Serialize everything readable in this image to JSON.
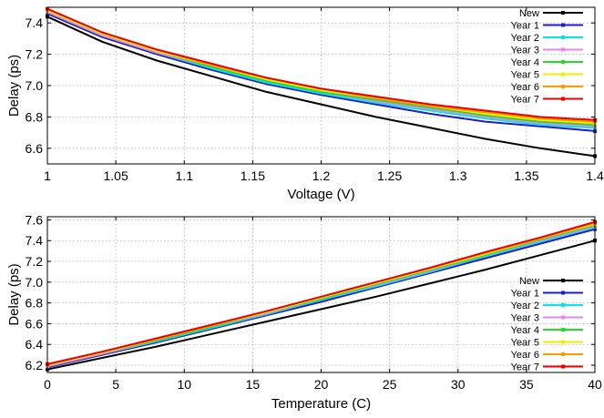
{
  "chart_data": [
    {
      "type": "line",
      "xlabel": "Voltage (V)",
      "ylabel": "Delay (ps)",
      "xlim": [
        1,
        1.4
      ],
      "ylim": [
        6.5,
        7.5
      ],
      "xticks": [
        1,
        1.05,
        1.1,
        1.15,
        1.2,
        1.25,
        1.3,
        1.35,
        1.4
      ],
      "xtick_labels": [
        "1",
        "1.05",
        "1.1",
        "1.15",
        "1.2",
        "1.25",
        "1.3",
        "1.35",
        "1.4"
      ],
      "yticks": [
        6.6,
        6.8,
        7.0,
        7.2,
        7.4
      ],
      "ytick_labels": [
        "6.6",
        "6.8",
        "7.0",
        "7.2",
        "7.4"
      ],
      "grid": true,
      "legend_position": "top-right",
      "x": [
        1,
        1.04,
        1.08,
        1.12,
        1.16,
        1.2,
        1.24,
        1.28,
        1.32,
        1.36,
        1.4
      ],
      "series": [
        {
          "name": "New",
          "color": "#000000",
          "values": [
            7.44,
            7.28,
            7.16,
            7.06,
            6.96,
            6.88,
            6.8,
            6.73,
            6.66,
            6.6,
            6.55
          ]
        },
        {
          "name": "Year 1",
          "color": "#1c1cc8",
          "values": [
            7.46,
            7.31,
            7.2,
            7.1,
            7.01,
            6.94,
            6.88,
            6.82,
            6.77,
            6.74,
            6.71
          ]
        },
        {
          "name": "Year 2",
          "color": "#00e5ee",
          "values": [
            7.47,
            7.32,
            7.21,
            7.11,
            7.02,
            6.95,
            6.89,
            6.84,
            6.79,
            6.75,
            6.73
          ]
        },
        {
          "name": "Year 3",
          "color": "#ee82ee",
          "values": [
            7.47,
            7.32,
            7.21,
            7.12,
            7.03,
            6.96,
            6.9,
            6.85,
            6.8,
            6.76,
            6.74
          ]
        },
        {
          "name": "Year 4",
          "color": "#22dd22",
          "values": [
            7.48,
            7.33,
            7.22,
            7.12,
            7.03,
            6.96,
            6.91,
            6.86,
            6.81,
            6.77,
            6.75
          ]
        },
        {
          "name": "Year 5",
          "color": "#eeee00",
          "values": [
            7.48,
            7.33,
            7.22,
            7.13,
            7.04,
            6.97,
            6.92,
            6.87,
            6.82,
            6.78,
            6.76
          ]
        },
        {
          "name": "Year 6",
          "color": "#ff9a00",
          "values": [
            7.49,
            7.34,
            7.23,
            7.13,
            7.05,
            6.98,
            6.92,
            6.87,
            6.83,
            6.79,
            6.77
          ]
        },
        {
          "name": "Year 7",
          "color": "#ee0000",
          "values": [
            7.49,
            7.34,
            7.23,
            7.14,
            7.05,
            6.98,
            6.93,
            6.88,
            6.84,
            6.8,
            6.78
          ]
        }
      ]
    },
    {
      "type": "line",
      "xlabel": "Temperature (C)",
      "ylabel": "Delay (ps)",
      "xlim": [
        0,
        40
      ],
      "ylim": [
        6.13,
        7.63
      ],
      "xticks": [
        0,
        5,
        10,
        15,
        20,
        25,
        30,
        35,
        40
      ],
      "xtick_labels": [
        "0",
        "5",
        "10",
        "15",
        "20",
        "25",
        "30",
        "35",
        "40"
      ],
      "yticks": [
        6.2,
        6.4,
        6.6,
        6.8,
        7.0,
        7.2,
        7.4,
        7.6
      ],
      "ytick_labels": [
        "6.2",
        "6.4",
        "6.6",
        "6.8",
        "7.0",
        "7.2",
        "7.4",
        "7.6"
      ],
      "grid": true,
      "legend_position": "bottom-right",
      "x": [
        0,
        4,
        8,
        12,
        16,
        20,
        24,
        28,
        32,
        36,
        40
      ],
      "series": [
        {
          "name": "New",
          "color": "#000000",
          "values": [
            6.16,
            6.27,
            6.38,
            6.5,
            6.62,
            6.74,
            6.86,
            6.99,
            7.12,
            7.26,
            7.4
          ]
        },
        {
          "name": "Year 1",
          "color": "#1c1cc8",
          "values": [
            6.18,
            6.3,
            6.42,
            6.55,
            6.68,
            6.81,
            6.95,
            7.09,
            7.23,
            7.37,
            7.51
          ]
        },
        {
          "name": "Year 2",
          "color": "#00e5ee",
          "values": [
            6.19,
            6.31,
            6.43,
            6.56,
            6.69,
            6.83,
            6.96,
            7.1,
            7.25,
            7.39,
            7.53
          ]
        },
        {
          "name": "Year 3",
          "color": "#ee82ee",
          "values": [
            6.19,
            6.31,
            6.44,
            6.57,
            6.7,
            6.84,
            6.97,
            7.11,
            7.26,
            7.4,
            7.54
          ]
        },
        {
          "name": "Year 4",
          "color": "#22dd22",
          "values": [
            6.2,
            6.32,
            6.44,
            6.57,
            6.71,
            6.84,
            6.98,
            7.12,
            7.26,
            7.41,
            7.55
          ]
        },
        {
          "name": "Year 5",
          "color": "#eeee00",
          "values": [
            6.2,
            6.32,
            6.45,
            6.58,
            6.71,
            6.85,
            6.99,
            7.13,
            7.27,
            7.42,
            7.56
          ]
        },
        {
          "name": "Year 6",
          "color": "#ff9a00",
          "values": [
            6.21,
            6.33,
            6.45,
            6.58,
            6.72,
            6.86,
            7.0,
            7.14,
            7.28,
            7.42,
            7.57
          ]
        },
        {
          "name": "Year 7",
          "color": "#ee0000",
          "values": [
            6.21,
            6.33,
            6.46,
            6.59,
            6.72,
            6.86,
            7.0,
            7.14,
            7.29,
            7.43,
            7.58
          ]
        }
      ]
    }
  ]
}
